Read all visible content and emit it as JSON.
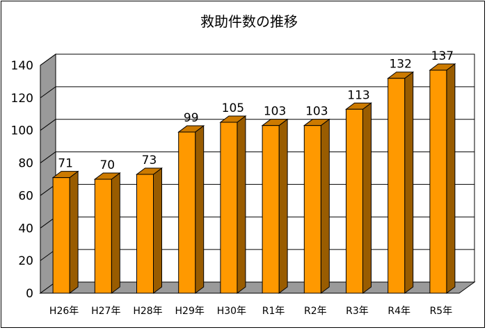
{
  "chart_data": {
    "type": "bar",
    "title": "救助件数の推移",
    "categories": [
      "H26年",
      "H27年",
      "H28年",
      "H29年",
      "H30年",
      "R1年",
      "R2年",
      "R3年",
      "R4年",
      "R5年"
    ],
    "values": [
      71,
      70,
      73,
      99,
      105,
      103,
      103,
      113,
      132,
      137
    ],
    "xlabel": "",
    "ylabel": "",
    "ylim": [
      0,
      140
    ],
    "yticks": [
      0,
      20,
      40,
      60,
      80,
      100,
      120,
      140
    ],
    "grid": true,
    "legend": "none",
    "style": "3d-column",
    "colors": {
      "bar_front": "#ff9900",
      "bar_side": "#995c00",
      "bar_top": "#cc7a00",
      "wall": "#9a9a9a",
      "floor": "#9a9a9a"
    }
  }
}
